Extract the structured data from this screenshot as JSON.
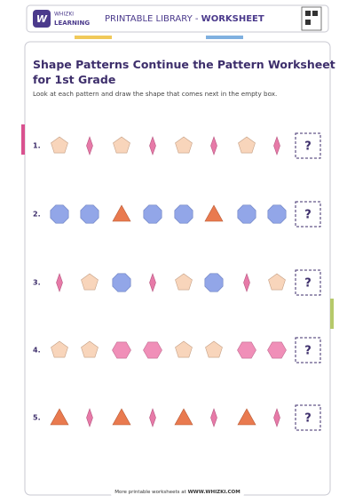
{
  "header": {
    "logo_top": "WHIZKI",
    "logo_bottom": "LEARNING",
    "label": "PRINTABLE LIBRARY - ",
    "label_bold": "WORKSHEET"
  },
  "title": "Shape Patterns Continue the Pattern Worksheet for 1st Grade",
  "instructions": "Look at each pattern and draw the shape that comes next in the empty box.",
  "rows": [
    {
      "number": "1.",
      "answer": "?"
    },
    {
      "number": "2.",
      "answer": "?"
    },
    {
      "number": "3.",
      "answer": "?"
    },
    {
      "number": "4.",
      "answer": "?"
    },
    {
      "number": "5.",
      "answer": "?"
    }
  ],
  "footer": {
    "text": "More printable worksheets at ",
    "link": "WWW.WHIZKI.COM"
  }
}
